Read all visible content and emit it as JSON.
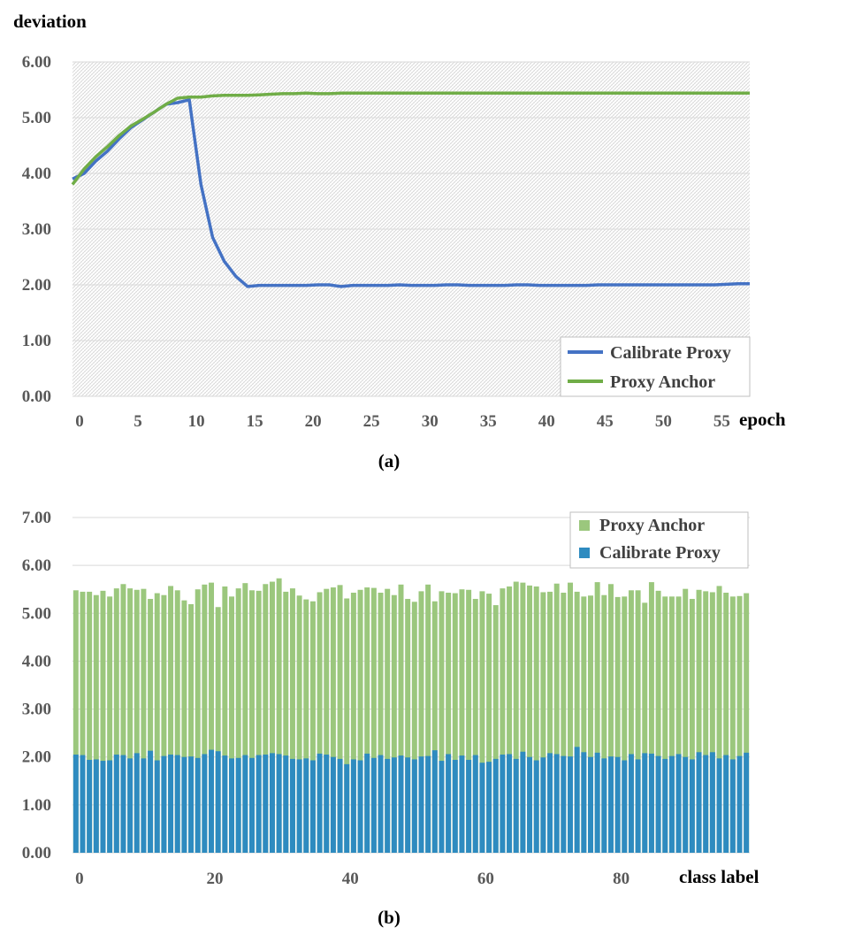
{
  "chart_data": [
    {
      "type": "line",
      "caption": "(a)",
      "ylabel": "deviation",
      "xlabel": "epoch",
      "ylim": [
        0,
        6
      ],
      "xlim": [
        0,
        58
      ],
      "y_ticks": [
        "0.00",
        "1.00",
        "2.00",
        "3.00",
        "4.00",
        "5.00",
        "6.00"
      ],
      "x_ticks": [
        "0",
        "5",
        "10",
        "15",
        "20",
        "25",
        "30",
        "35",
        "40",
        "45",
        "50",
        "55"
      ],
      "grid": true,
      "legend_position": "bottom-right",
      "series": [
        {
          "name": "Calibrate Proxy",
          "color": "#4472C4",
          "x": [
            0,
            1,
            2,
            3,
            4,
            5,
            6,
            7,
            8,
            9,
            10,
            11,
            12,
            13,
            14,
            15,
            16,
            17,
            18,
            19,
            20,
            21,
            22,
            23,
            24,
            25,
            26,
            27,
            28,
            29,
            30,
            31,
            32,
            33,
            34,
            35,
            36,
            37,
            38,
            39,
            40,
            41,
            42,
            43,
            44,
            45,
            46,
            47,
            48,
            49,
            50,
            51,
            52,
            53,
            54,
            55,
            56,
            57,
            58
          ],
          "values": [
            3.9,
            4.0,
            4.22,
            4.4,
            4.62,
            4.82,
            4.96,
            5.1,
            5.24,
            5.27,
            5.32,
            3.8,
            2.85,
            2.42,
            2.15,
            1.97,
            1.99,
            1.99,
            1.99,
            1.99,
            1.99,
            2.0,
            2.0,
            1.97,
            1.99,
            1.99,
            1.99,
            1.99,
            2.0,
            1.99,
            1.99,
            1.99,
            2.0,
            2.0,
            1.99,
            1.99,
            1.99,
            1.99,
            2.0,
            2.0,
            1.99,
            1.99,
            1.99,
            1.99,
            1.99,
            2.0,
            2.0,
            2.0,
            2.0,
            2.0,
            2.0,
            2.0,
            2.0,
            2.0,
            2.0,
            2.0,
            2.01,
            2.02,
            2.02
          ]
        },
        {
          "name": "Proxy Anchor",
          "color": "#70AD47",
          "x": [
            0,
            1,
            2,
            3,
            4,
            5,
            6,
            7,
            8,
            9,
            10,
            11,
            12,
            13,
            14,
            15,
            16,
            17,
            18,
            19,
            20,
            21,
            22,
            23,
            24,
            25,
            26,
            27,
            28,
            29,
            30,
            31,
            32,
            33,
            34,
            35,
            36,
            37,
            38,
            39,
            40,
            41,
            42,
            43,
            44,
            45,
            46,
            47,
            48,
            49,
            50,
            51,
            52,
            53,
            54,
            55,
            56,
            57,
            58
          ],
          "values": [
            3.8,
            4.08,
            4.3,
            4.48,
            4.68,
            4.85,
            4.97,
            5.1,
            5.24,
            5.35,
            5.37,
            5.37,
            5.39,
            5.4,
            5.4,
            5.4,
            5.41,
            5.42,
            5.43,
            5.43,
            5.44,
            5.43,
            5.43,
            5.44,
            5.44,
            5.44,
            5.44,
            5.44,
            5.44,
            5.44,
            5.44,
            5.44,
            5.44,
            5.44,
            5.44,
            5.44,
            5.44,
            5.44,
            5.44,
            5.44,
            5.44,
            5.44,
            5.44,
            5.44,
            5.44,
            5.44,
            5.44,
            5.44,
            5.44,
            5.44,
            5.44,
            5.44,
            5.44,
            5.44,
            5.44,
            5.44,
            5.44,
            5.44,
            5.44
          ]
        }
      ]
    },
    {
      "type": "bar",
      "stacked": "overlay",
      "caption": "(b)",
      "xlabel": "class label",
      "ylim": [
        0,
        7
      ],
      "y_ticks": [
        "0.00",
        "1.00",
        "2.00",
        "3.00",
        "4.00",
        "5.00",
        "6.00",
        "7.00"
      ],
      "x_ticks": [
        "0",
        "20",
        "40",
        "60",
        "80"
      ],
      "x_tick_values": [
        0,
        20,
        40,
        60,
        80
      ],
      "grid": true,
      "legend_position": "top-right",
      "series": [
        {
          "name": "Proxy Anchor",
          "color": "#9BC77D",
          "values": [
            5.48,
            5.45,
            5.45,
            5.38,
            5.47,
            5.35,
            5.52,
            5.61,
            5.52,
            5.49,
            5.51,
            5.3,
            5.42,
            5.38,
            5.57,
            5.48,
            5.27,
            5.19,
            5.5,
            5.6,
            5.64,
            5.13,
            5.56,
            5.35,
            5.52,
            5.63,
            5.48,
            5.47,
            5.61,
            5.66,
            5.73,
            5.45,
            5.52,
            5.37,
            5.29,
            5.25,
            5.44,
            5.51,
            5.54,
            5.59,
            5.31,
            5.43,
            5.49,
            5.54,
            5.53,
            5.43,
            5.51,
            5.38,
            5.6,
            5.3,
            5.24,
            5.46,
            5.6,
            5.25,
            5.46,
            5.43,
            5.42,
            5.5,
            5.49,
            5.3,
            5.46,
            5.41,
            5.17,
            5.52,
            5.56,
            5.66,
            5.64,
            5.58,
            5.56,
            5.44,
            5.45,
            5.62,
            5.43,
            5.64,
            5.45,
            5.35,
            5.37,
            5.65,
            5.38,
            5.61,
            5.34,
            5.35,
            5.48,
            5.48,
            5.22,
            5.65,
            5.47,
            5.35,
            5.35,
            5.35,
            5.51,
            5.3,
            5.49,
            5.46,
            5.44,
            5.57,
            5.43,
            5.35,
            5.36,
            5.42
          ]
        },
        {
          "name": "Calibrate Proxy",
          "color": "#2E8BC0",
          "values": [
            2.05,
            2.04,
            1.94,
            1.95,
            1.92,
            1.93,
            2.05,
            2.04,
            1.97,
            2.08,
            1.97,
            2.13,
            1.93,
            2.02,
            2.05,
            2.04,
            2.0,
            2.01,
            1.98,
            2.06,
            2.15,
            2.12,
            2.03,
            1.97,
            1.98,
            2.04,
            1.98,
            2.04,
            2.05,
            2.08,
            2.06,
            2.03,
            1.96,
            1.95,
            1.97,
            1.93,
            2.07,
            2.05,
            2.0,
            1.96,
            1.85,
            1.95,
            1.93,
            2.07,
            1.98,
            2.04,
            1.96,
            1.99,
            2.03,
            1.99,
            1.95,
            2.01,
            2.02,
            2.14,
            1.92,
            2.06,
            1.94,
            2.03,
            1.94,
            2.04,
            1.88,
            1.9,
            1.96,
            2.05,
            2.06,
            1.96,
            2.11,
            2.0,
            1.93,
            1.99,
            2.08,
            2.06,
            2.02,
            2.01,
            2.21,
            2.1,
            2.0,
            2.09,
            1.97,
            2.01,
            2.0,
            1.93,
            2.06,
            1.95,
            2.08,
            2.07,
            2.02,
            1.96,
            2.02,
            2.06,
            2.0,
            1.95,
            2.1,
            2.04,
            2.1,
            1.97,
            2.04,
            1.95,
            2.02,
            2.09
          ]
        }
      ]
    }
  ]
}
